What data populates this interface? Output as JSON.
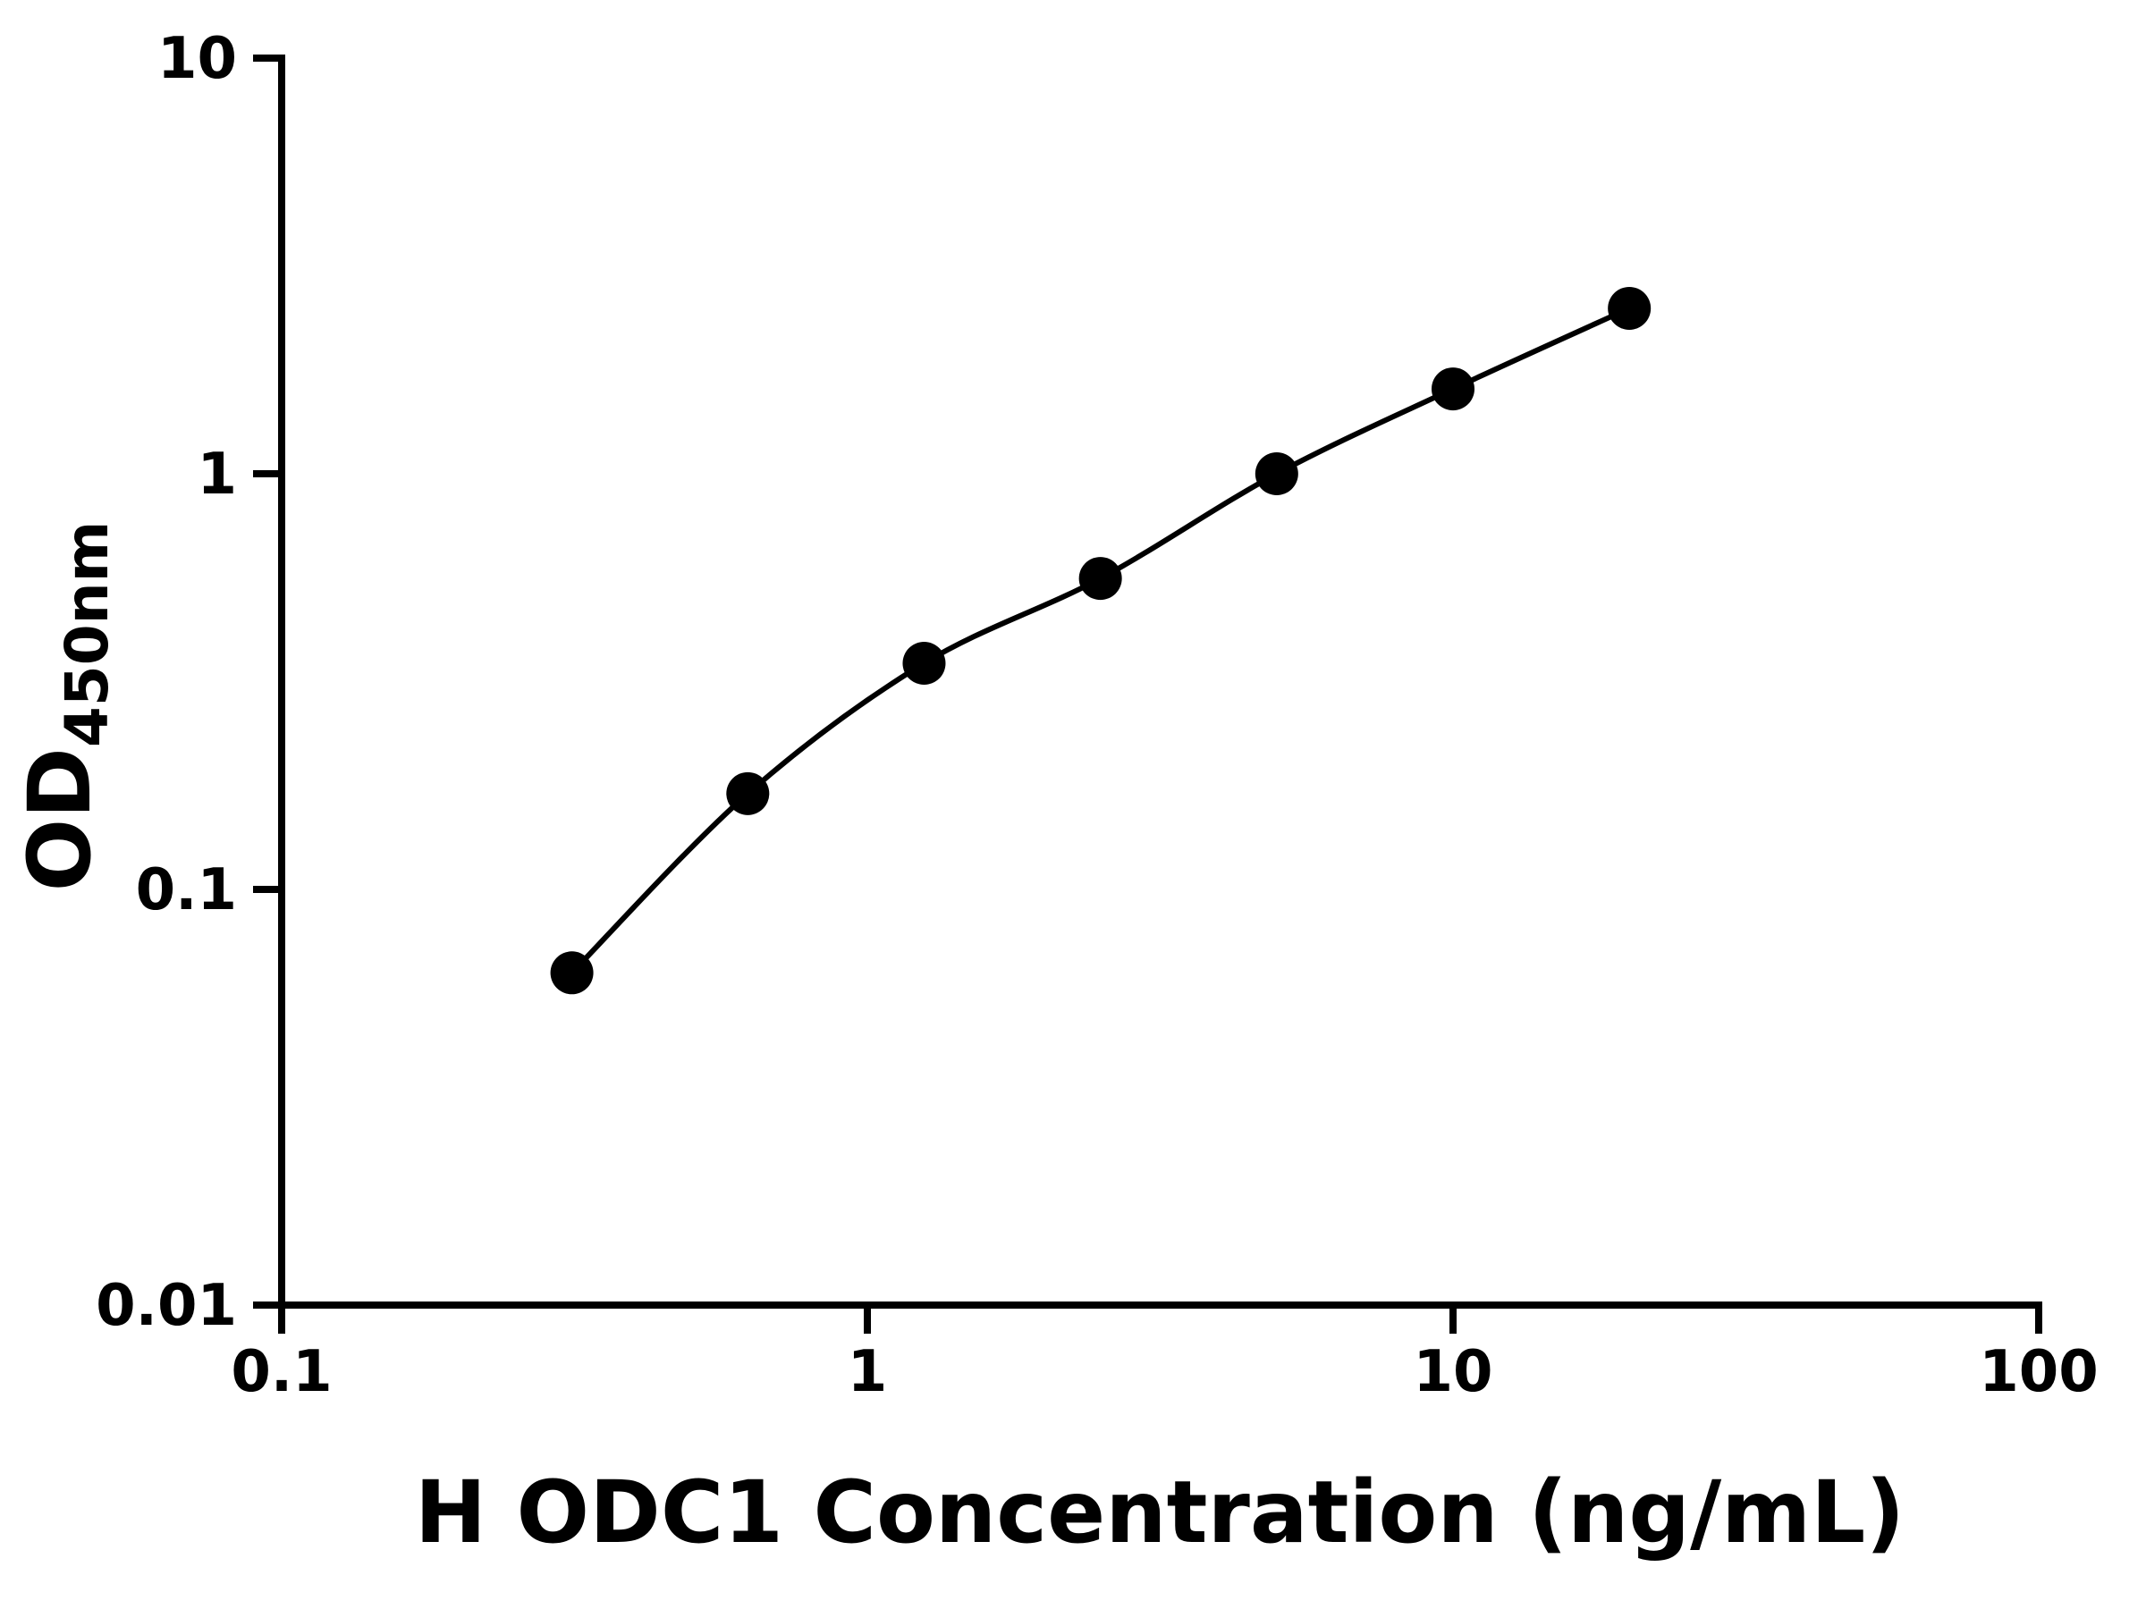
{
  "chart_data": {
    "type": "scatter",
    "x": [
      0.313,
      0.625,
      1.25,
      2.5,
      5,
      10,
      20
    ],
    "y": [
      0.063,
      0.17,
      0.35,
      0.56,
      1.0,
      1.6,
      2.5
    ],
    "title": "",
    "xlabel": "H ODC1 Concentration (ng/mL)",
    "ylabel_main": "OD",
    "ylabel_sub": "450nm",
    "xscale": "log10",
    "yscale": "log10",
    "xlim": [
      0.1,
      100
    ],
    "ylim": [
      0.01,
      10
    ],
    "x_tick_labels": [
      "0.1",
      "1",
      "10",
      "100"
    ],
    "y_tick_labels": [
      "0.01",
      "0.1",
      "1",
      "10"
    ],
    "grid": false,
    "legend": null,
    "marker_shape": "circle",
    "marker_color": "#000000",
    "line_color": "#000000",
    "axis_color": "#000000",
    "background_color": "#ffffff"
  }
}
